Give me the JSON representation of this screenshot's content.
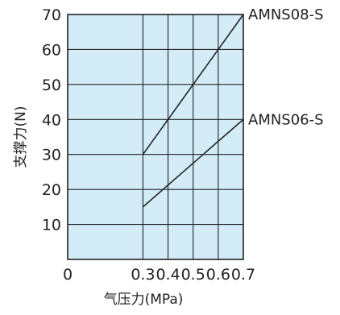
{
  "chart_data": {
    "type": "line",
    "title": "",
    "xlabel": "气压力(MPa)",
    "ylabel": "支撑力(N)",
    "xlim": [
      0,
      0.7
    ],
    "ylim": [
      0,
      70
    ],
    "x_ticks": [
      "0",
      "0.3",
      "0.4",
      "0.5",
      "0.6",
      "0.7"
    ],
    "y_ticks": [
      "10",
      "20",
      "30",
      "40",
      "50",
      "60",
      "70"
    ],
    "grid": true,
    "plot_background": "#d3ecf8",
    "grid_color": "#222222",
    "line_color": "#222222",
    "series": [
      {
        "name": "AMNS08-S",
        "x": [
          0.3,
          0.7
        ],
        "y": [
          30,
          70
        ]
      },
      {
        "name": "AMNS06-S",
        "x": [
          0.3,
          0.7
        ],
        "y": [
          15,
          40
        ]
      }
    ]
  }
}
